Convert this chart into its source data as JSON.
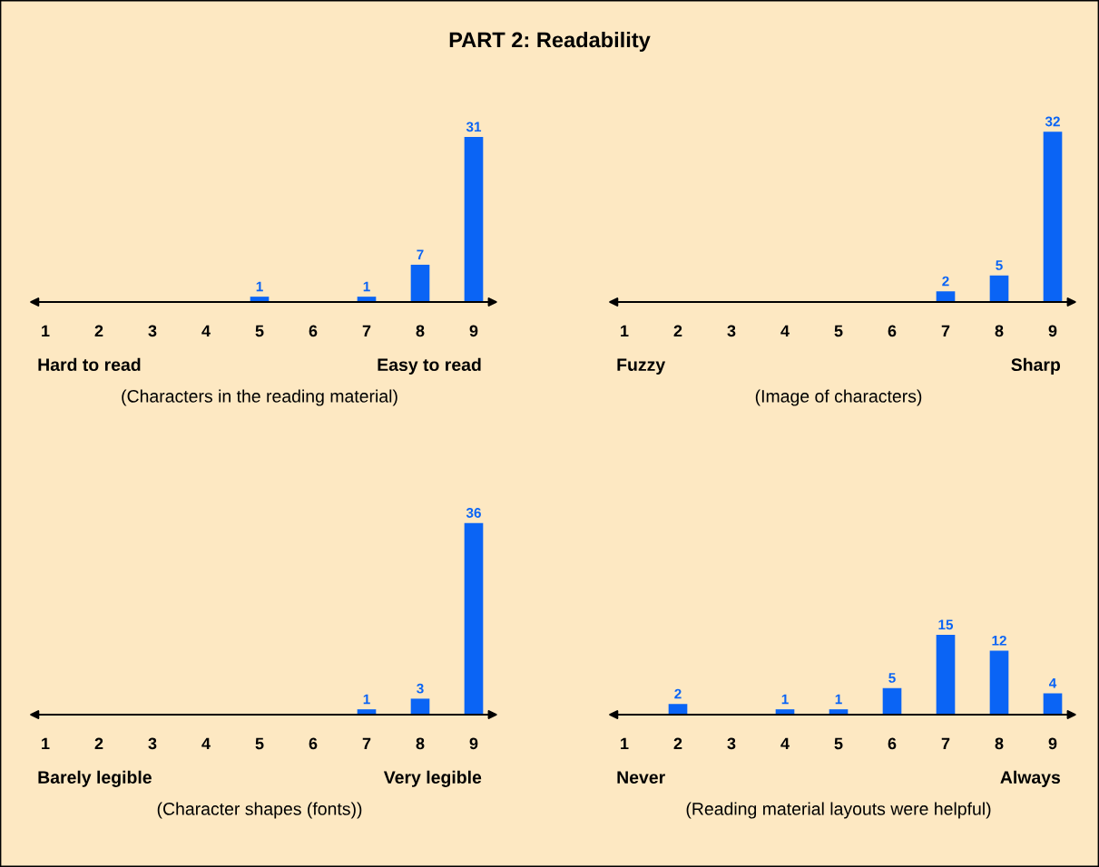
{
  "chart_data": [
    {
      "type": "bar",
      "title": "PART 2: Readability",
      "categories": [
        "1",
        "2",
        "3",
        "4",
        "5",
        "6",
        "7",
        "8",
        "9"
      ],
      "values": [
        null,
        null,
        null,
        null,
        1,
        null,
        1,
        7,
        31
      ],
      "color": "#0a64f5",
      "data_labels": true,
      "annotations": [
        "Hard to read",
        "Easy to read"
      ],
      "xlabel": "(Characters in the reading material)"
    },
    {
      "type": "bar",
      "categories": [
        "1",
        "2",
        "3",
        "4",
        "5",
        "6",
        "7",
        "8",
        "9"
      ],
      "values": [
        null,
        null,
        null,
        null,
        null,
        null,
        2,
        5,
        32
      ],
      "color": "#0a64f5",
      "data_labels": true,
      "annotations": [
        "Fuzzy",
        "Sharp"
      ],
      "xlabel": "(Image of characters)"
    },
    {
      "type": "bar",
      "categories": [
        "1",
        "2",
        "3",
        "4",
        "5",
        "6",
        "7",
        "8",
        "9"
      ],
      "values": [
        null,
        null,
        null,
        null,
        null,
        null,
        1,
        3,
        36
      ],
      "color": "#0a64f5",
      "data_labels": true,
      "annotations": [
        "Barely legible",
        "Very legible"
      ],
      "xlabel": "(Character shapes (fonts))"
    },
    {
      "type": "bar",
      "categories": [
        "1",
        "2",
        "3",
        "4",
        "5",
        "6",
        "7",
        "8",
        "9"
      ],
      "values": [
        null,
        2,
        null,
        1,
        1,
        5,
        15,
        12,
        4
      ],
      "color": "#0a64f5",
      "data_labels": true,
      "annotations": [
        "Never",
        "Always"
      ],
      "xlabel": "(Reading material layouts were helpful)"
    }
  ]
}
